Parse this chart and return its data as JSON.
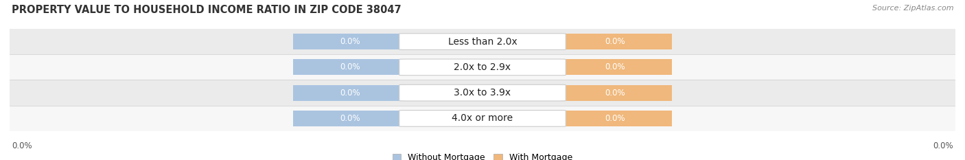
{
  "title": "PROPERTY VALUE TO HOUSEHOLD INCOME RATIO IN ZIP CODE 38047",
  "source_text": "Source: ZipAtlas.com",
  "categories": [
    "Less than 2.0x",
    "2.0x to 2.9x",
    "3.0x to 3.9x",
    "4.0x or more"
  ],
  "without_mortgage": [
    0.0,
    0.0,
    0.0,
    0.0
  ],
  "with_mortgage": [
    0.0,
    0.0,
    0.0,
    0.0
  ],
  "color_without": "#aac4e0",
  "color_with": "#f0b87c",
  "row_bg_even": "#ebebeb",
  "row_bg_odd": "#f7f7f7",
  "title_fontsize": 10.5,
  "source_fontsize": 8,
  "label_fontsize": 10,
  "value_fontsize": 8.5,
  "legend_fontsize": 9,
  "left_label": "0.0%",
  "right_label": "0.0%",
  "legend_labels": [
    "Without Mortgage",
    "With Mortgage"
  ]
}
